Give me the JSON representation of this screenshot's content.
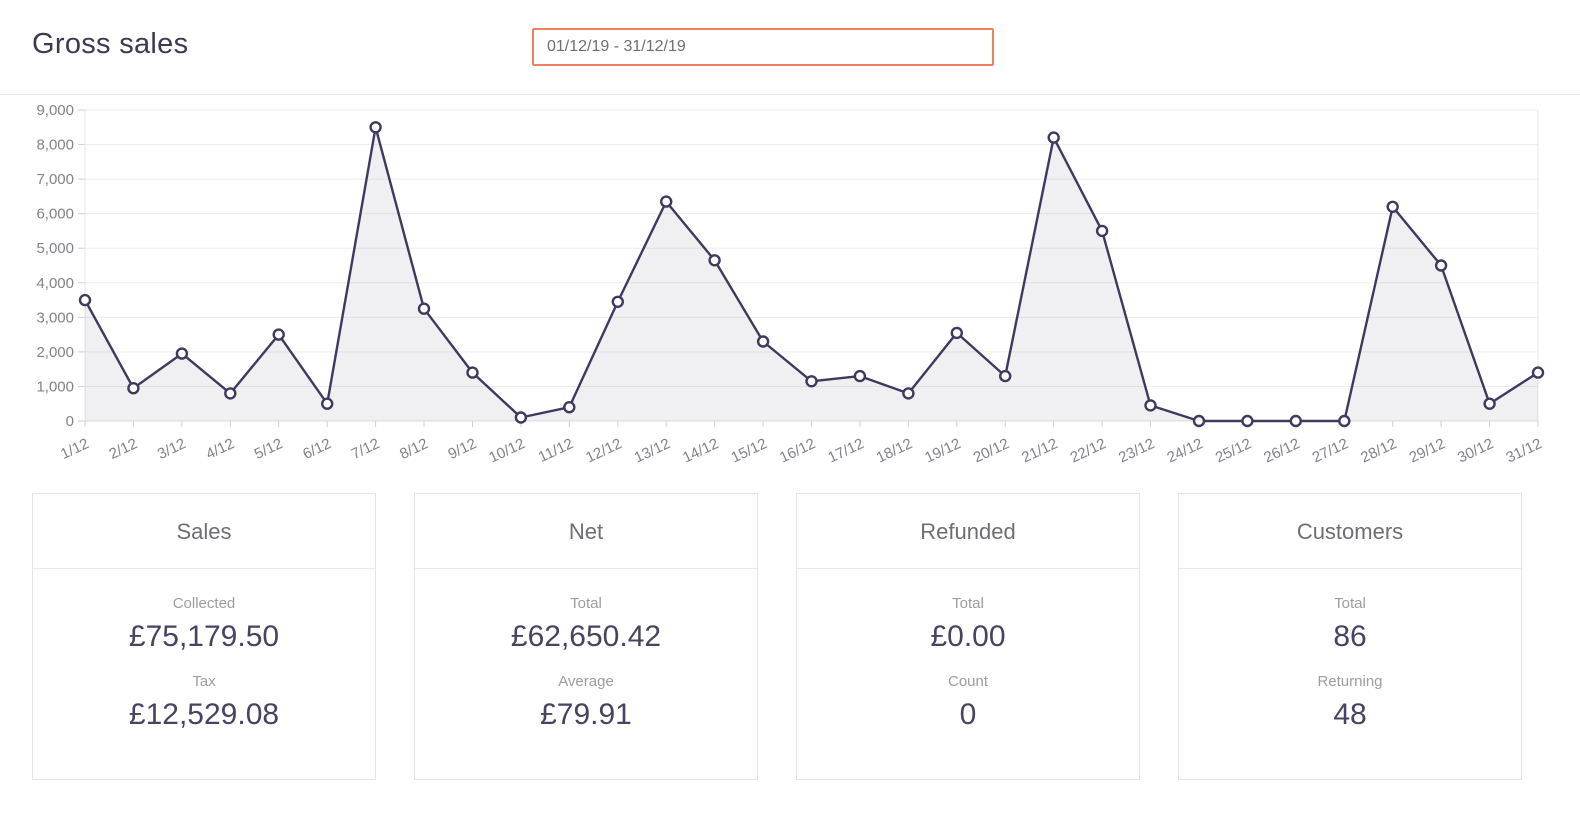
{
  "header": {
    "title": "Gross sales",
    "date_range": "01/12/19 - 31/12/19"
  },
  "chart_data": {
    "type": "area",
    "categories": [
      "1/12",
      "2/12",
      "3/12",
      "4/12",
      "5/12",
      "6/12",
      "7/12",
      "8/12",
      "9/12",
      "10/12",
      "11/12",
      "12/12",
      "13/12",
      "14/12",
      "15/12",
      "16/12",
      "17/12",
      "18/12",
      "19/12",
      "20/12",
      "21/12",
      "22/12",
      "23/12",
      "24/12",
      "25/12",
      "26/12",
      "27/12",
      "28/12",
      "29/12",
      "30/12",
      "31/12"
    ],
    "values": [
      3500,
      950,
      1950,
      800,
      2500,
      500,
      8500,
      3250,
      1400,
      100,
      400,
      3450,
      6350,
      4650,
      2300,
      1150,
      1300,
      800,
      2550,
      1300,
      8200,
      5500,
      450,
      0,
      0,
      0,
      0,
      6200,
      4500,
      500,
      1400
    ],
    "xlabel": "",
    "ylabel": "",
    "ylim": [
      0,
      9000
    ],
    "yticks": [
      "0",
      "1,000",
      "2,000",
      "3,000",
      "4,000",
      "5,000",
      "6,000",
      "7,000",
      "8,000",
      "9,000"
    ],
    "grid": "horizontal",
    "legend": "none",
    "line_color": "#3e3a5f",
    "marker": "open-circle",
    "area_opacity": 0.08
  },
  "cards": [
    {
      "title": "Sales",
      "rows": [
        {
          "label": "Collected",
          "value": "£75,179.50"
        },
        {
          "label": "Tax",
          "value": "£12,529.08"
        }
      ]
    },
    {
      "title": "Net",
      "rows": [
        {
          "label": "Total",
          "value": "£62,650.42"
        },
        {
          "label": "Average",
          "value": "£79.91"
        }
      ]
    },
    {
      "title": "Refunded",
      "rows": [
        {
          "label": "Total",
          "value": "£0.00"
        },
        {
          "label": "Count",
          "value": "0"
        }
      ]
    },
    {
      "title": "Customers",
      "rows": [
        {
          "label": "Total",
          "value": "86"
        },
        {
          "label": "Returning",
          "value": "48"
        }
      ]
    }
  ],
  "colors": {
    "accent_border": "#ef8162",
    "chart_line": "#3e3a5f",
    "value_text": "#474360",
    "muted_text": "#9c9ca2"
  }
}
